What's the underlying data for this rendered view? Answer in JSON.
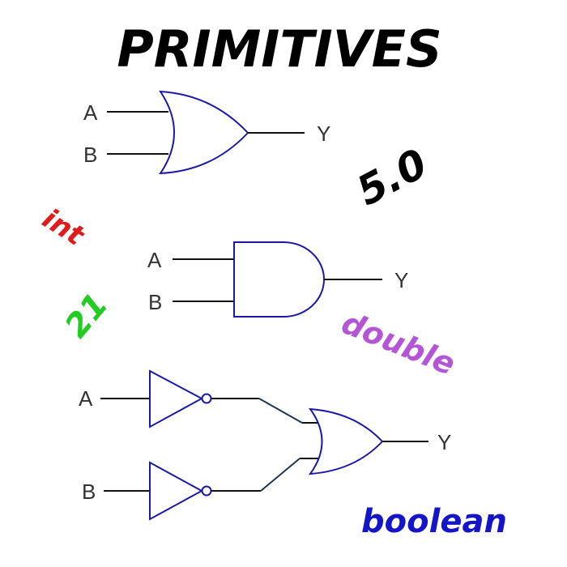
{
  "title": "PRIMITIVES",
  "circuits": {
    "or_gate": {
      "input_a": "A",
      "input_b": "B",
      "output": "Y"
    },
    "and_gate": {
      "input_a": "A",
      "input_b": "B",
      "output": "Y"
    },
    "combo": {
      "input_a": "A",
      "input_b": "B",
      "output": "Y"
    }
  },
  "type_labels": {
    "float_value": "5.0",
    "int": "int",
    "int_value": "21",
    "double": "double",
    "boolean": "boolean"
  },
  "colors": {
    "title": "#000000",
    "gate_stroke": "#1a1aa8",
    "wire": "#111111",
    "wire_diagonal": "#1f3550",
    "pin_label": "#333333",
    "float_value": "#000000",
    "int": "#e01b1b",
    "int_value": "#22cc22",
    "double": "#b455d8",
    "boolean": "#1414c8"
  },
  "icons": [
    "or-gate-icon",
    "and-gate-icon",
    "not-gate-icon",
    "not-gate-icon",
    "or-gate-icon"
  ]
}
